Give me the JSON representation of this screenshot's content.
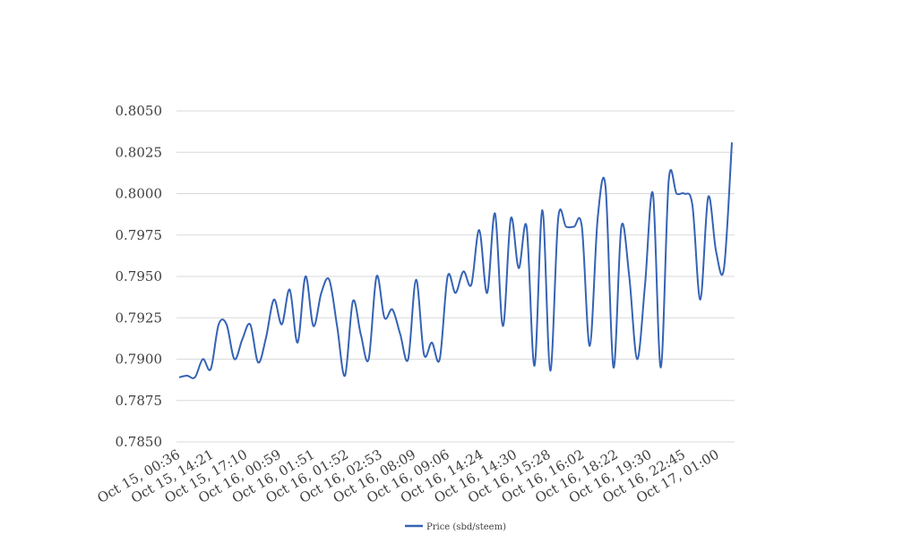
{
  "chart_data": {
    "type": "line",
    "title": "",
    "xlabel": "",
    "ylabel": "",
    "ylim": [
      0.785,
      0.805
    ],
    "y_ticks": [
      "0.8050",
      "0.8025",
      "0.8000",
      "0.7975",
      "0.7950",
      "0.7925",
      "0.7900",
      "0.7875",
      "0.7850"
    ],
    "x_ticks": [
      "Oct 15, 00:36",
      "Oct 15, 14:21",
      "Oct 15, 17:10",
      "Oct 16, 00:59",
      "Oct 16, 01:51",
      "Oct 16, 01:52",
      "Oct 16, 02:53",
      "Oct 16, 08:09",
      "Oct 16, 09:06",
      "Oct 16, 14:24",
      "Oct 16, 14:30",
      "Oct 16, 15:28",
      "Oct 16, 16:02",
      "Oct 16, 18:22",
      "Oct 16, 19:30",
      "Oct 16, 22:45",
      "Oct 17, 01:00"
    ],
    "grid": true,
    "legend_position": "bottom",
    "colors": {
      "series": "#3563b5",
      "grid": "#d9d9d9",
      "text": "#404040"
    },
    "series": [
      {
        "name": "Price (sbd/steem)",
        "values": [
          0.7889,
          0.789,
          0.7889,
          0.79,
          0.7894,
          0.7921,
          0.7921,
          0.79,
          0.7912,
          0.7921,
          0.7898,
          0.7913,
          0.7936,
          0.7921,
          0.7942,
          0.791,
          0.795,
          0.792,
          0.794,
          0.7948,
          0.792,
          0.789,
          0.7935,
          0.7915,
          0.79,
          0.795,
          0.7925,
          0.793,
          0.7915,
          0.79,
          0.7948,
          0.7903,
          0.791,
          0.79,
          0.795,
          0.794,
          0.7953,
          0.7945,
          0.7978,
          0.794,
          0.7988,
          0.792,
          0.7985,
          0.7955,
          0.798,
          0.7896,
          0.799,
          0.7893,
          0.7985,
          0.798,
          0.798,
          0.798,
          0.7908,
          0.7985,
          0.8004,
          0.7895,
          0.798,
          0.795,
          0.79,
          0.7945,
          0.8,
          0.7895,
          0.8008,
          0.8,
          0.8,
          0.7993,
          0.7936,
          0.7998,
          0.7965,
          0.7955,
          0.8031
        ]
      }
    ]
  }
}
